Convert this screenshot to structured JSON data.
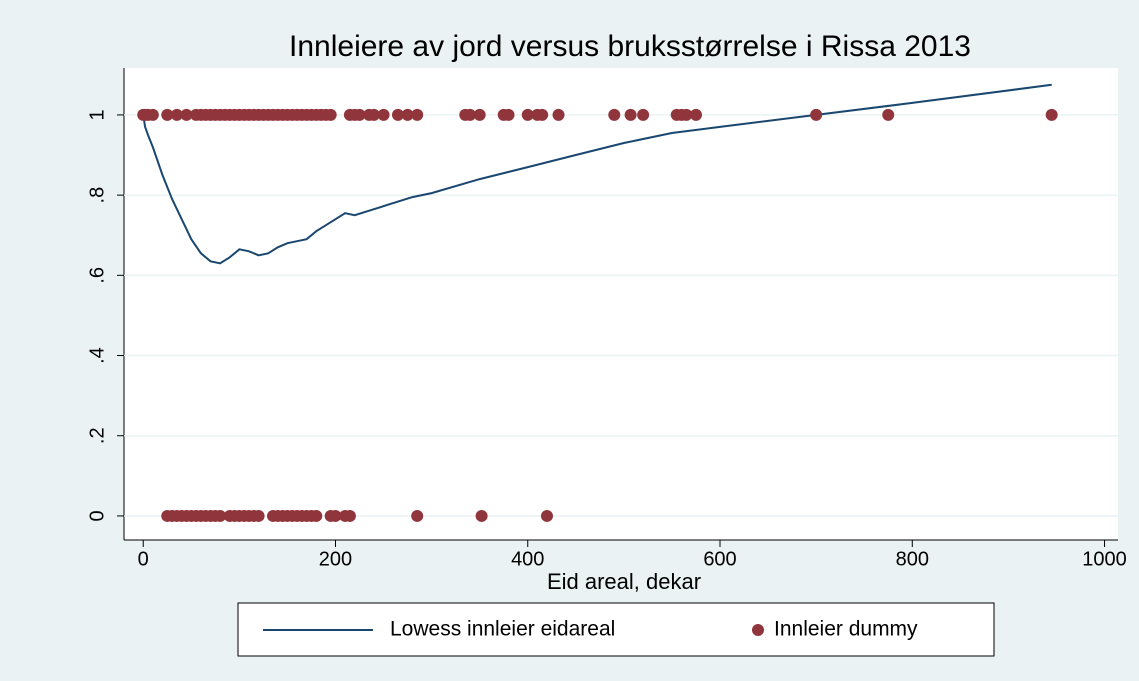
{
  "chart_data": {
    "type": "scatter",
    "title": "Innleiere av jord versus bruksstørrelse i Rissa 2013",
    "x_label": "Eid areal, dekar",
    "xlim": [
      -20,
      1014
    ],
    "ylim": [
      -0.06,
      1.117
    ],
    "xticks": [
      0,
      200,
      400,
      600,
      800,
      1000
    ],
    "yticks": [
      0,
      {
        "value": 0.2,
        "label": ".2"
      },
      {
        "value": 0.4,
        "label": ".4"
      },
      {
        "value": 0.6,
        "label": ".6"
      },
      {
        "value": 0.8,
        "label": ".8"
      },
      1
    ],
    "grid": true,
    "legend": "bottom",
    "series": [
      {
        "name": "Lowess innleier eidareal",
        "mode": "line",
        "color": "#1a476f",
        "x": [
          0,
          2,
          5,
          10,
          20,
          30,
          40,
          50,
          60,
          70,
          80,
          90,
          100,
          110,
          120,
          130,
          140,
          150,
          160,
          170,
          180,
          190,
          200,
          210,
          220,
          240,
          260,
          280,
          300,
          350,
          400,
          450,
          500,
          550,
          600,
          700,
          800,
          945
        ],
        "y": [
          1.0,
          0.97,
          0.95,
          0.92,
          0.85,
          0.79,
          0.74,
          0.69,
          0.655,
          0.635,
          0.63,
          0.645,
          0.665,
          0.66,
          0.65,
          0.655,
          0.67,
          0.68,
          0.685,
          0.69,
          0.71,
          0.725,
          0.74,
          0.755,
          0.75,
          0.765,
          0.78,
          0.795,
          0.805,
          0.84,
          0.87,
          0.9,
          0.93,
          0.955,
          0.97,
          1.0,
          1.03,
          1.075
        ]
      },
      {
        "name": "Innleier dummy",
        "mode": "markers",
        "color": "#90353b",
        "x": [
          0,
          2,
          5,
          10,
          25,
          35,
          45,
          55,
          60,
          65,
          70,
          75,
          80,
          85,
          90,
          95,
          100,
          105,
          110,
          115,
          120,
          125,
          130,
          135,
          140,
          145,
          150,
          155,
          160,
          165,
          170,
          175,
          180,
          185,
          190,
          195,
          215,
          220,
          225,
          235,
          240,
          250,
          265,
          275,
          285,
          335,
          340,
          350,
          375,
          380,
          400,
          410,
          415,
          432,
          490,
          507,
          520,
          555,
          560,
          565,
          575,
          700,
          775,
          945,
          25,
          30,
          35,
          40,
          45,
          50,
          55,
          60,
          65,
          70,
          75,
          80,
          90,
          95,
          100,
          105,
          110,
          115,
          120,
          135,
          140,
          145,
          150,
          155,
          160,
          165,
          170,
          175,
          180,
          195,
          200,
          210,
          215,
          285,
          352,
          420
        ],
        "y": [
          1,
          1,
          1,
          1,
          1,
          1,
          1,
          1,
          1,
          1,
          1,
          1,
          1,
          1,
          1,
          1,
          1,
          1,
          1,
          1,
          1,
          1,
          1,
          1,
          1,
          1,
          1,
          1,
          1,
          1,
          1,
          1,
          1,
          1,
          1,
          1,
          1,
          1,
          1,
          1,
          1,
          1,
          1,
          1,
          1,
          1,
          1,
          1,
          1,
          1,
          1,
          1,
          1,
          1,
          1,
          1,
          1,
          1,
          1,
          1,
          1,
          1,
          1,
          1,
          0,
          0,
          0,
          0,
          0,
          0,
          0,
          0,
          0,
          0,
          0,
          0,
          0,
          0,
          0,
          0,
          0,
          0,
          0,
          0,
          0,
          0,
          0,
          0,
          0,
          0,
          0,
          0,
          0,
          0,
          0,
          0,
          0,
          0,
          0,
          0
        ]
      }
    ]
  }
}
